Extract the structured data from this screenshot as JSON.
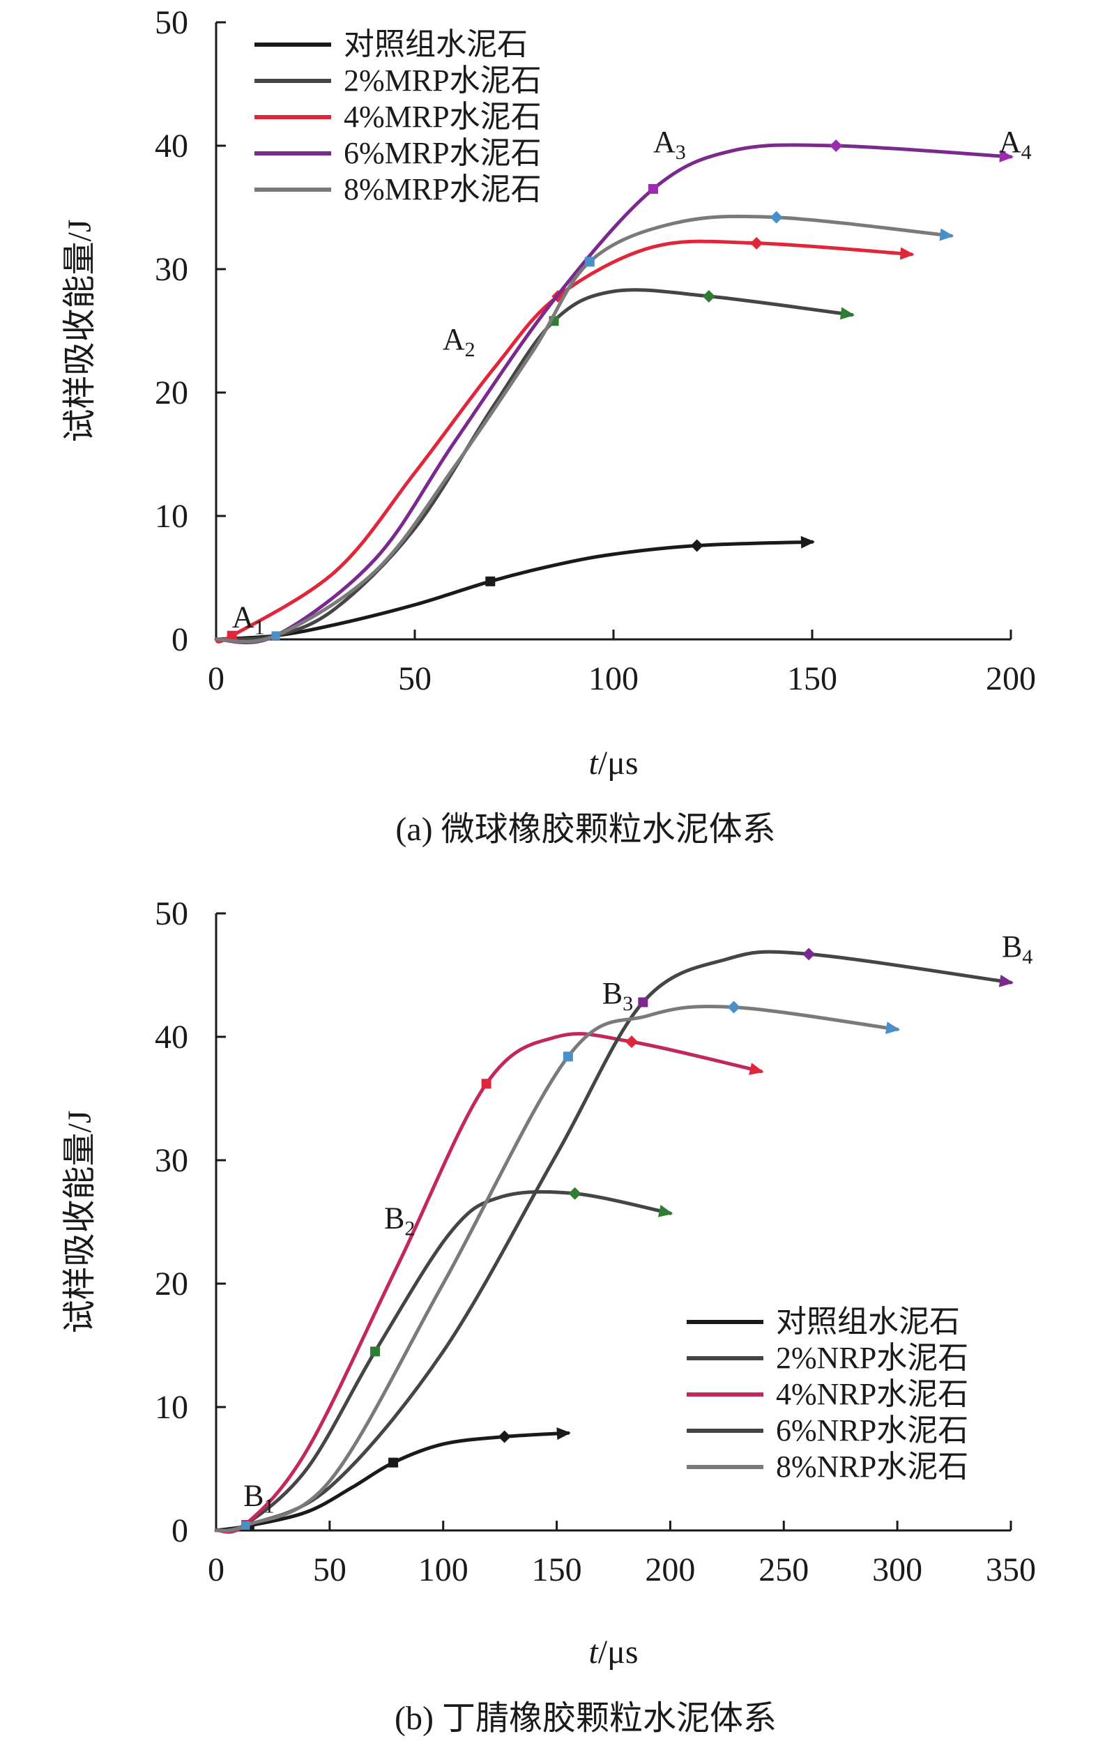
{
  "chart_data": [
    {
      "type": "line",
      "caption": "(a) 微球橡胶颗粒水泥体系",
      "xlabel_italic": "t",
      "xlabel_rest": "/μs",
      "ylabel": "试样吸收能量/J",
      "xlim": [
        0,
        200
      ],
      "ylim": [
        0,
        50
      ],
      "xticks": [
        "0",
        "50",
        "100",
        "150",
        "200"
      ],
      "yticks": [
        "0",
        "10",
        "20",
        "30",
        "40",
        "50"
      ],
      "legend_position": "top-left",
      "series": [
        {
          "name": "对照组水泥石",
          "color": "#1a1a1a",
          "marker_color": "#1a1a1a",
          "x": [
            0,
            15,
            30,
            50,
            69,
            85,
            100,
            121,
            150
          ],
          "y": [
            0,
            0.3,
            1.2,
            2.8,
            4.7,
            6.0,
            6.9,
            7.6,
            7.9
          ],
          "markers": [
            4,
            7
          ]
        },
        {
          "name": "2%MRP水泥石",
          "color": "#454545",
          "marker_color": "#2e7d32",
          "x": [
            0,
            15,
            30,
            50,
            70,
            85,
            100,
            124,
            160
          ],
          "y": [
            0,
            0.3,
            2.5,
            9.0,
            19.0,
            25.8,
            28.2,
            27.8,
            26.3
          ],
          "markers": [
            5,
            7
          ]
        },
        {
          "name": "4%MRP水泥石",
          "color": "#e0263b",
          "marker_color": "#e0263b",
          "x": [
            0,
            4,
            30,
            50,
            70,
            86,
            110,
            136,
            175
          ],
          "y": [
            0,
            0.3,
            5.5,
            13.5,
            22.0,
            27.8,
            31.8,
            32.1,
            31.2
          ],
          "markers": [
            1,
            5,
            7
          ]
        },
        {
          "name": "6%MRP水泥石",
          "color": "#7a2a8c",
          "marker_color": "#9b2cb0",
          "x": [
            0,
            15,
            40,
            60,
            85,
            110,
            130,
            156,
            200
          ],
          "y": [
            0,
            0.3,
            6.5,
            16.0,
            27.5,
            36.5,
            39.6,
            40.0,
            39.1
          ],
          "markers": [
            5,
            7
          ]
        },
        {
          "name": "8%MRP水泥石",
          "color": "#7a7a7a",
          "marker_color": "#4a90c8",
          "x": [
            0,
            15,
            40,
            60,
            80,
            94,
            115,
            141,
            185
          ],
          "y": [
            0,
            0.3,
            5.5,
            14.0,
            23.5,
            30.6,
            33.7,
            34.2,
            32.7
          ],
          "markers": [
            5,
            7
          ]
        }
      ],
      "annotations": [
        {
          "base": "A",
          "sub": "1",
          "x": 4,
          "y": 1.0
        },
        {
          "base": "A",
          "sub": "2",
          "x": 57,
          "y": 23.5
        },
        {
          "base": "A",
          "sub": "3",
          "x": 110,
          "y": 39.5
        },
        {
          "base": "A",
          "sub": "4",
          "x": 197,
          "y": 39.5
        }
      ]
    },
    {
      "type": "line",
      "caption": "(b) 丁腈橡胶颗粒水泥体系",
      "xlabel_italic": "t",
      "xlabel_rest": "/μs",
      "ylabel": "试样吸收能量/J",
      "xlim": [
        0,
        350
      ],
      "ylim": [
        0,
        50
      ],
      "xticks": [
        "0",
        "50",
        "100",
        "150",
        "200",
        "250",
        "300",
        "350"
      ],
      "yticks": [
        "0",
        "10",
        "20",
        "30",
        "40",
        "50"
      ],
      "legend_position": "bottom-right",
      "series": [
        {
          "name": "对照组水泥石",
          "color": "#1a1a1a",
          "marker_color": "#1a1a1a",
          "x": [
            0,
            15,
            40,
            60,
            78,
            100,
            127,
            155
          ],
          "y": [
            0,
            0.4,
            1.5,
            3.5,
            5.5,
            7.0,
            7.6,
            7.9
          ],
          "markers": [
            4,
            6
          ]
        },
        {
          "name": "2%NRP水泥石",
          "color": "#454545",
          "marker_color": "#2e7d32",
          "x": [
            0,
            13,
            40,
            70,
            103,
            125,
            158,
            200
          ],
          "y": [
            0,
            0.5,
            5.0,
            14.5,
            24.1,
            27.0,
            27.3,
            25.7
          ],
          "markers": [
            3,
            6
          ]
        },
        {
          "name": "4%NRP水泥石",
          "color": "#c2285a",
          "marker_color": "#e0263b",
          "x": [
            0,
            13,
            40,
            80,
            119,
            150,
            183,
            240
          ],
          "y": [
            0,
            0.5,
            6.5,
            21.5,
            36.2,
            40.0,
            39.6,
            37.2
          ],
          "markers": [
            4,
            6
          ]
        },
        {
          "name": "6%NRP水泥石",
          "color": "#454545",
          "marker_color": "#7a2a8c",
          "x": [
            0,
            13,
            50,
            100,
            150,
            188,
            225,
            261,
            350
          ],
          "y": [
            0,
            0.4,
            3.5,
            14.5,
            30.5,
            42.8,
            46.3,
            46.7,
            44.4
          ],
          "markers": [
            5,
            7
          ]
        },
        {
          "name": "8%NRP水泥石",
          "color": "#7a7a7a",
          "marker_color": "#4a90c8",
          "x": [
            0,
            13,
            50,
            100,
            155,
            190,
            228,
            300
          ],
          "y": [
            0,
            0.4,
            4.0,
            20.0,
            38.4,
            41.7,
            42.4,
            40.6
          ],
          "markers": [
            4,
            6
          ]
        }
      ],
      "annotations": [
        {
          "base": "B",
          "sub": "1",
          "x": 12,
          "y": 2.0
        },
        {
          "base": "B",
          "sub": "2",
          "x": 74,
          "y": 24.5
        },
        {
          "base": "B",
          "sub": "3",
          "x": 170,
          "y": 42.7
        },
        {
          "base": "B",
          "sub": "4",
          "x": 346,
          "y": 46.5
        }
      ]
    }
  ]
}
